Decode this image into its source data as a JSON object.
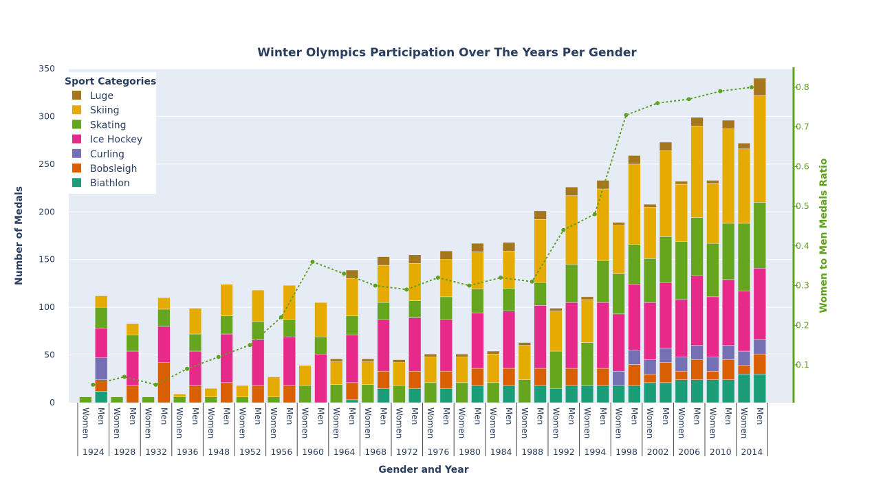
{
  "chart_data": {
    "type": "bar",
    "stacked": true,
    "title": "Winter Olympics Participation Over The Years Per Gender",
    "xlabel": "Gender and Year",
    "ylabel": "Number of Medals",
    "y2label": "Women to Men Medals Ratio",
    "ylim": [
      0,
      350
    ],
    "y_ticks": [
      0,
      50,
      100,
      150,
      200,
      250,
      300,
      350
    ],
    "y2_ticks": [
      "0.1",
      "0.2",
      "0.3",
      "0.4",
      "0.5",
      "0.6",
      "0.7",
      "0.8"
    ],
    "y2_tick_values": [
      0.1,
      0.2,
      0.3,
      0.4,
      0.5,
      0.6,
      0.7,
      0.8
    ],
    "legend_title": "Sport Categories",
    "legend_placement": "top-left",
    "grid": true,
    "years": [
      "1924",
      "1928",
      "1932",
      "1936",
      "1948",
      "1952",
      "1956",
      "1960",
      "1964",
      "1968",
      "1972",
      "1976",
      "1980",
      "1984",
      "1988",
      "1992",
      "1994",
      "1998",
      "2002",
      "2006",
      "2010",
      "2014"
    ],
    "gender_labels": [
      "Women",
      "Men"
    ],
    "series": [
      {
        "name": "Biathlon",
        "color": "#1b9e77",
        "values": [
          [
            0,
            12
          ],
          [
            0,
            0
          ],
          [
            0,
            0
          ],
          [
            0,
            0
          ],
          [
            0,
            0
          ],
          [
            0,
            0
          ],
          [
            0,
            0
          ],
          [
            0,
            0
          ],
          [
            0,
            3
          ],
          [
            0,
            15
          ],
          [
            0,
            15
          ],
          [
            0,
            15
          ],
          [
            0,
            18
          ],
          [
            0,
            18
          ],
          [
            0,
            18
          ],
          [
            15,
            18
          ],
          [
            18,
            18
          ],
          [
            18,
            18
          ],
          [
            21,
            21
          ],
          [
            24,
            24
          ],
          [
            24,
            24
          ],
          [
            30,
            30
          ]
        ]
      },
      {
        "name": "Bobsleigh",
        "color": "#d95f02",
        "values": [
          [
            0,
            12
          ],
          [
            0,
            18
          ],
          [
            0,
            42
          ],
          [
            0,
            18
          ],
          [
            0,
            21
          ],
          [
            0,
            18
          ],
          [
            0,
            18
          ],
          [
            0,
            0
          ],
          [
            0,
            18
          ],
          [
            0,
            18
          ],
          [
            0,
            18
          ],
          [
            0,
            18
          ],
          [
            0,
            18
          ],
          [
            0,
            18
          ],
          [
            0,
            18
          ],
          [
            0,
            18
          ],
          [
            0,
            18
          ],
          [
            0,
            22
          ],
          [
            9,
            21
          ],
          [
            9,
            21
          ],
          [
            9,
            21
          ],
          [
            9,
            21
          ]
        ]
      },
      {
        "name": "Curling",
        "color": "#7570b3",
        "values": [
          [
            0,
            23
          ],
          [
            0,
            0
          ],
          [
            0,
            0
          ],
          [
            0,
            0
          ],
          [
            0,
            0
          ],
          [
            0,
            0
          ],
          [
            0,
            0
          ],
          [
            0,
            0
          ],
          [
            0,
            0
          ],
          [
            0,
            0
          ],
          [
            0,
            0
          ],
          [
            0,
            0
          ],
          [
            0,
            0
          ],
          [
            0,
            0
          ],
          [
            0,
            0
          ],
          [
            0,
            0
          ],
          [
            0,
            0
          ],
          [
            15,
            15
          ],
          [
            15,
            15
          ],
          [
            15,
            15
          ],
          [
            15,
            15
          ],
          [
            15,
            15
          ]
        ]
      },
      {
        "name": "Ice Hockey",
        "color": "#e7298a",
        "values": [
          [
            0,
            31
          ],
          [
            0,
            36
          ],
          [
            0,
            38
          ],
          [
            0,
            36
          ],
          [
            0,
            51
          ],
          [
            0,
            48
          ],
          [
            0,
            51
          ],
          [
            0,
            51
          ],
          [
            0,
            50
          ],
          [
            0,
            54
          ],
          [
            0,
            56
          ],
          [
            0,
            54
          ],
          [
            0,
            58
          ],
          [
            0,
            60
          ],
          [
            0,
            66
          ],
          [
            0,
            69
          ],
          [
            0,
            69
          ],
          [
            60,
            69
          ],
          [
            60,
            69
          ],
          [
            60,
            73
          ],
          [
            63,
            69
          ],
          [
            63,
            75
          ]
        ]
      },
      {
        "name": "Skating",
        "color": "#66a61e",
        "values": [
          [
            6,
            22
          ],
          [
            6,
            17
          ],
          [
            6,
            18
          ],
          [
            6,
            18
          ],
          [
            6,
            19
          ],
          [
            6,
            19
          ],
          [
            6,
            18
          ],
          [
            18,
            18
          ],
          [
            19,
            20
          ],
          [
            19,
            18
          ],
          [
            18,
            18
          ],
          [
            21,
            24
          ],
          [
            21,
            25
          ],
          [
            21,
            24
          ],
          [
            24,
            24
          ],
          [
            39,
            40
          ],
          [
            45,
            44
          ],
          [
            42,
            42
          ],
          [
            46,
            48
          ],
          [
            61,
            61
          ],
          [
            56,
            59
          ],
          [
            71,
            69
          ]
        ]
      },
      {
        "name": "Skiing",
        "color": "#e6ab02",
        "values": [
          [
            0,
            12
          ],
          [
            0,
            12
          ],
          [
            0,
            12
          ],
          [
            3,
            27
          ],
          [
            9,
            33
          ],
          [
            12,
            33
          ],
          [
            21,
            36
          ],
          [
            21,
            36
          ],
          [
            24,
            39
          ],
          [
            24,
            39
          ],
          [
            24,
            39
          ],
          [
            27,
            39
          ],
          [
            27,
            39
          ],
          [
            30,
            39
          ],
          [
            36,
            66
          ],
          [
            42,
            72
          ],
          [
            45,
            75
          ],
          [
            51,
            84
          ],
          [
            54,
            90
          ],
          [
            60,
            96
          ],
          [
            63,
            99
          ],
          [
            78,
            112
          ]
        ]
      },
      {
        "name": "Luge",
        "color": "#a6761d",
        "values": [
          [
            0,
            0
          ],
          [
            0,
            0
          ],
          [
            0,
            0
          ],
          [
            0,
            0
          ],
          [
            0,
            0
          ],
          [
            0,
            0
          ],
          [
            0,
            0
          ],
          [
            0,
            0
          ],
          [
            3,
            9
          ],
          [
            3,
            9
          ],
          [
            3,
            9
          ],
          [
            3,
            9
          ],
          [
            3,
            9
          ],
          [
            3,
            9
          ],
          [
            3,
            9
          ],
          [
            3,
            9
          ],
          [
            3,
            9
          ],
          [
            3,
            9
          ],
          [
            3,
            9
          ],
          [
            3,
            9
          ],
          [
            3,
            9
          ],
          [
            6,
            18
          ]
        ]
      }
    ],
    "ratio_series": {
      "name": "Women to Men Medals Ratio",
      "color": "#5fa11e",
      "values": [
        0.05,
        0.07,
        0.05,
        0.09,
        0.12,
        0.15,
        0.22,
        0.36,
        0.33,
        0.3,
        0.29,
        0.32,
        0.3,
        0.32,
        0.31,
        0.44,
        0.48,
        0.73,
        0.76,
        0.77,
        0.79,
        0.8
      ]
    }
  }
}
